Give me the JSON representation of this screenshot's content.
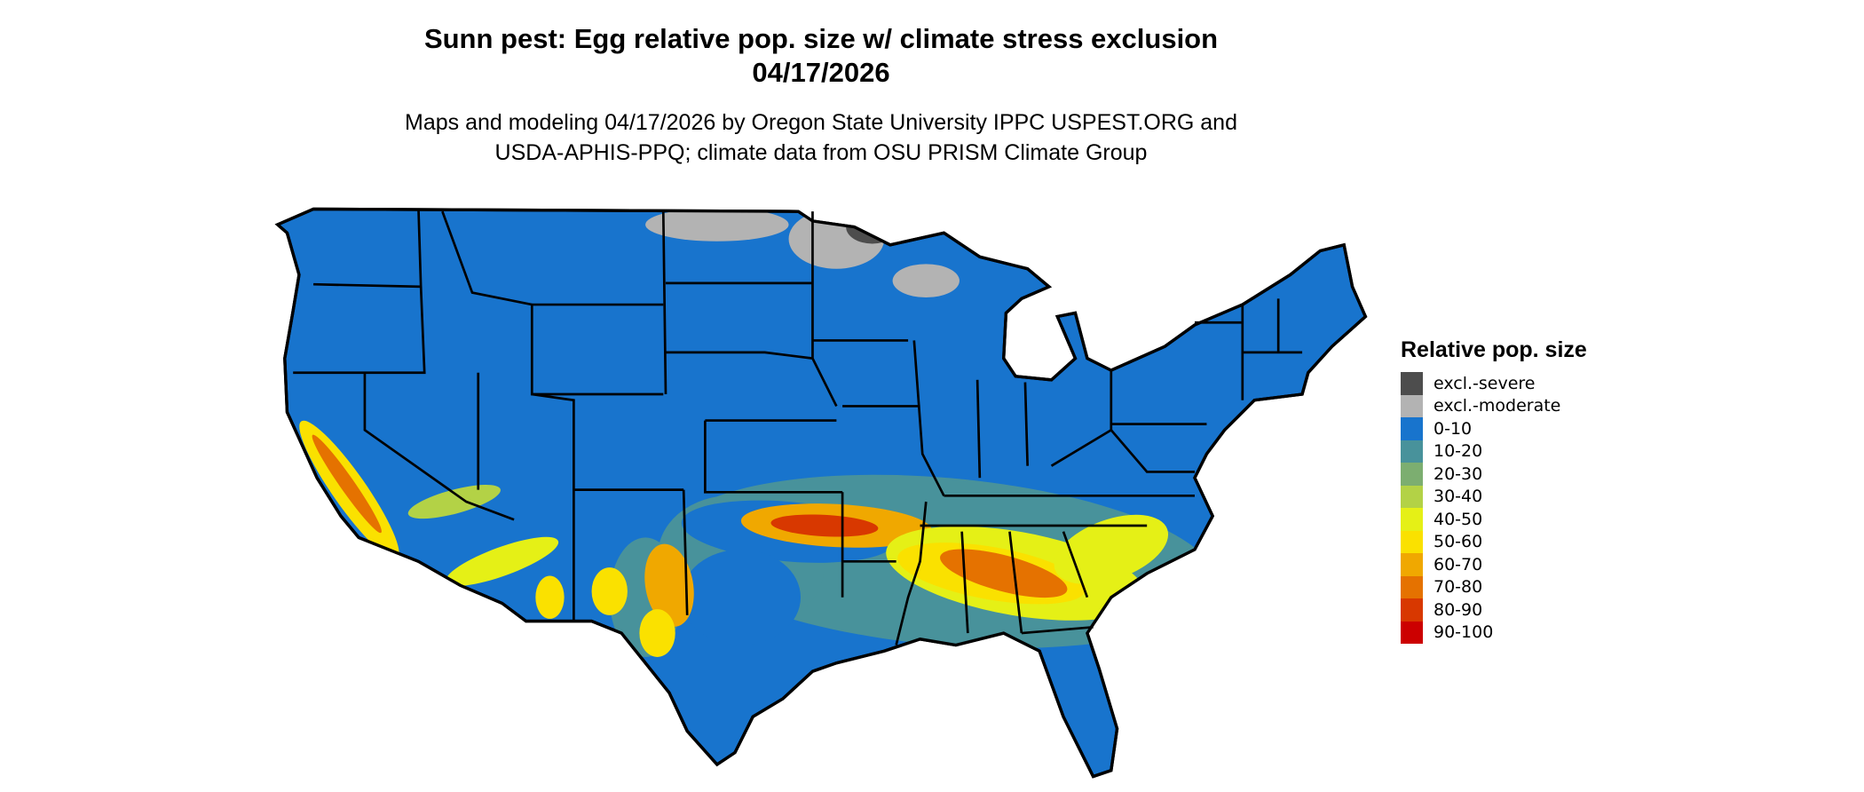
{
  "header": {
    "title_line1": "Sunn pest: Egg relative pop. size w/ climate stress exclusion",
    "title_line2": "04/17/2026",
    "subtitle_line1": "Maps and modeling 04/17/2026 by Oregon State University IPPC USPEST.ORG and",
    "subtitle_line2": "USDA-APHIS-PPQ; climate data from OSU PRISM Climate Group"
  },
  "map": {
    "region": "Contiguous United States",
    "base_color": "#1874CD",
    "state_border_color": "#000000"
  },
  "legend": {
    "title": "Relative pop. size",
    "items": [
      {
        "label": "excl.-severe",
        "color": "#4D4D4D"
      },
      {
        "label": "excl.-moderate",
        "color": "#B3B3B3"
      },
      {
        "label": "0-10",
        "color": "#1874CD"
      },
      {
        "label": "10-20",
        "color": "#48929B"
      },
      {
        "label": "20-30",
        "color": "#7CAE70"
      },
      {
        "label": "30-40",
        "color": "#B3D246"
      },
      {
        "label": "40-50",
        "color": "#E5F016"
      },
      {
        "label": "50-60",
        "color": "#FAE100"
      },
      {
        "label": "60-70",
        "color": "#F0A800"
      },
      {
        "label": "70-80",
        "color": "#E57200"
      },
      {
        "label": "80-90",
        "color": "#D83800"
      },
      {
        "label": "90-100",
        "color": "#CC0000"
      }
    ]
  }
}
